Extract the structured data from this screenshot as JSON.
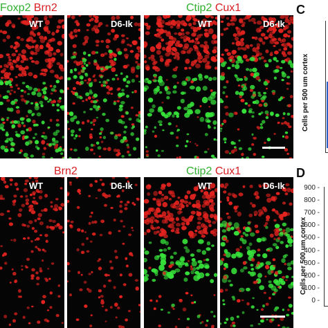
{
  "top": {
    "left_title": {
      "green": "Foxp2",
      "red": "Brn2"
    },
    "right_title": {
      "green": "Ctip2",
      "red": "Cux1"
    },
    "panels": [
      "WT",
      "D6-Ik",
      "WT",
      "D6-Ik"
    ]
  },
  "bottom": {
    "left_title": {
      "green": "",
      "red": "Brn2"
    },
    "right_title": {
      "green": "Ctip2",
      "red": "Cux1"
    },
    "panels": [
      "WT",
      "D6-Ik",
      "WT",
      "D6-Ik"
    ]
  },
  "graphs": {
    "C": {
      "letter": "C",
      "ylabel": "Cells per 500 um cortex"
    },
    "D": {
      "letter": "D",
      "ylabel": "Cells per 500 um cortex",
      "ticks": [
        "900",
        "800",
        "700",
        "600",
        "500",
        "400",
        "300",
        "200",
        "100",
        "0"
      ]
    }
  }
}
